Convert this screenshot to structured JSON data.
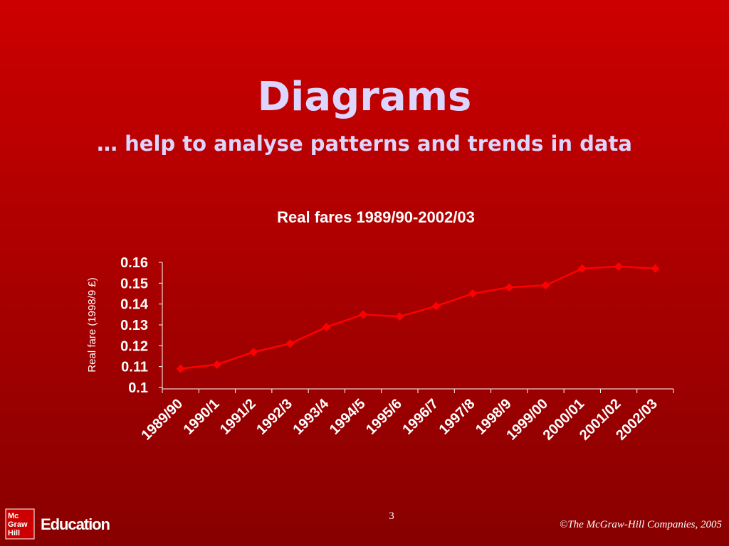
{
  "slide": {
    "title": "Diagrams",
    "subtitle": "… help to analyse patterns and trends in data",
    "page_number": "3",
    "logo_lines": [
      "Mc",
      "Graw",
      "Hill"
    ],
    "logo_text": "Education",
    "copyright": "©The McGraw-Hill Companies, 2005"
  },
  "chart_data": {
    "type": "line",
    "title": "Real fares 1989/90-2002/03",
    "y_label": "Real fare (1998/9 £)",
    "categories": [
      "1989/90",
      "1990/1",
      "1991/2",
      "1992/3",
      "1993/4",
      "1994/5",
      "1995/6",
      "1996/7",
      "1997/8",
      "1998/9",
      "1999/00",
      "2000/01",
      "2001/02",
      "2002/03"
    ],
    "series": [
      {
        "name": "Real fare",
        "color": "#ff0000",
        "values": [
          0.109,
          0.111,
          0.117,
          0.121,
          0.129,
          0.135,
          0.134,
          0.139,
          0.145,
          0.148,
          0.149,
          0.157,
          0.158,
          0.157
        ]
      }
    ],
    "ylim": [
      0.1,
      0.16
    ],
    "yticks": [
      0.1,
      0.11,
      0.12,
      0.13,
      0.14,
      0.15,
      0.16
    ],
    "grid": false
  }
}
